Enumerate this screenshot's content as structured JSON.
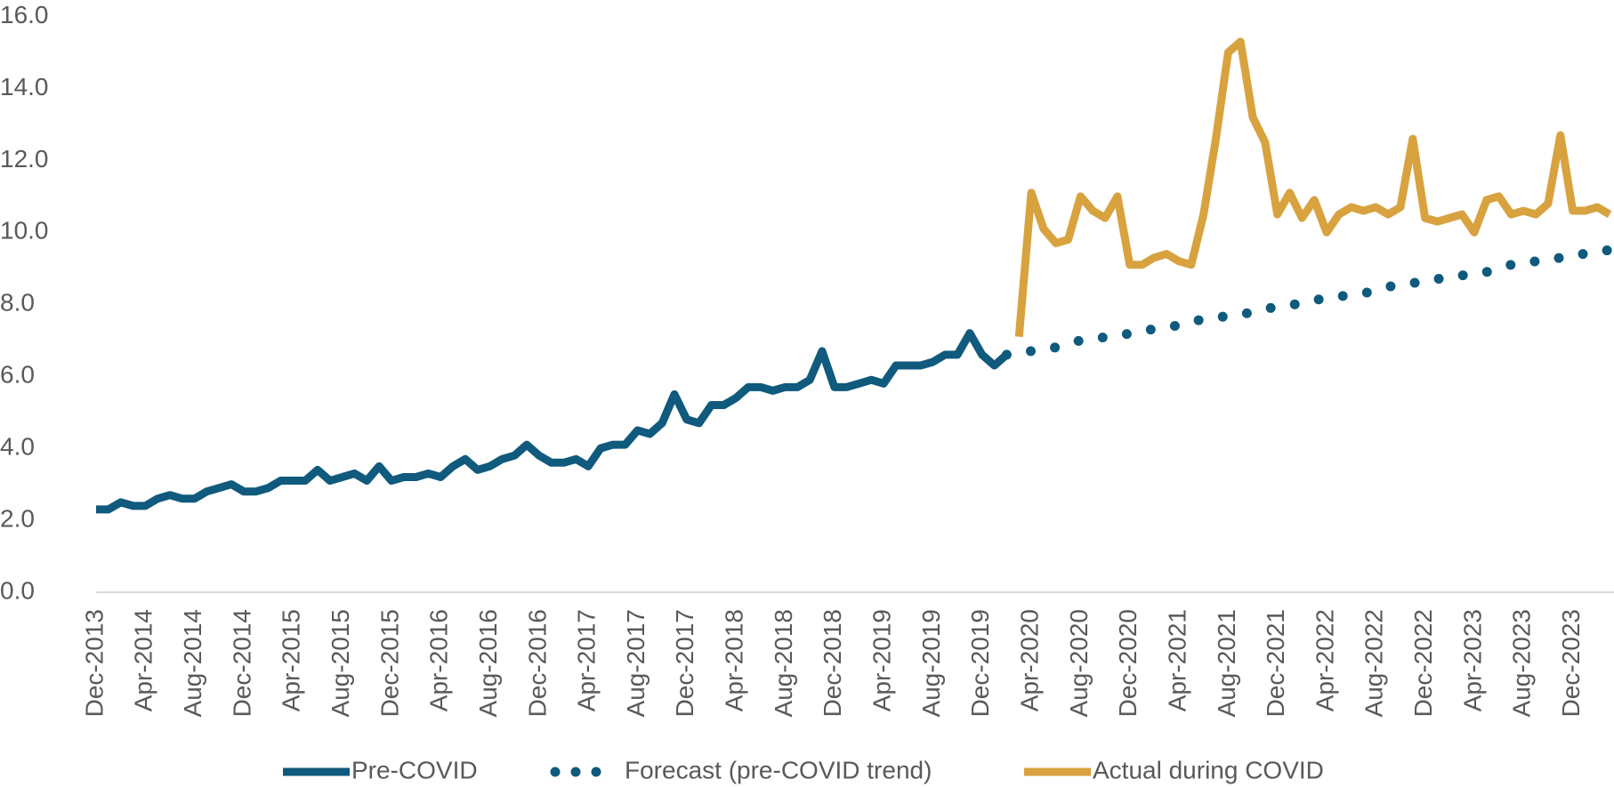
{
  "chart_data": {
    "type": "line",
    "categories": [
      "Dec-2013",
      null,
      null,
      null,
      "Apr-2014",
      null,
      null,
      null,
      "Aug-2014",
      null,
      null,
      null,
      "Dec-2014",
      null,
      null,
      null,
      "Apr-2015",
      null,
      null,
      null,
      "Aug-2015",
      null,
      null,
      null,
      "Dec-2015",
      null,
      null,
      null,
      "Apr-2016",
      null,
      null,
      null,
      "Aug-2016",
      null,
      null,
      null,
      "Dec-2016",
      null,
      null,
      null,
      "Apr-2017",
      null,
      null,
      null,
      "Aug-2017",
      null,
      null,
      null,
      "Dec-2017",
      null,
      null,
      null,
      "Apr-2018",
      null,
      null,
      null,
      "Aug-2018",
      null,
      null,
      null,
      "Dec-2018",
      null,
      null,
      null,
      "Apr-2019",
      null,
      null,
      null,
      "Aug-2019",
      null,
      null,
      null,
      "Dec-2019",
      null,
      null,
      null,
      "Apr-2020",
      null,
      null,
      null,
      "Aug-2020",
      null,
      null,
      null,
      "Dec-2020",
      null,
      null,
      null,
      "Apr-2021",
      null,
      null,
      null,
      "Aug-2021",
      null,
      null,
      null,
      "Dec-2021",
      null,
      null,
      null,
      "Apr-2022",
      null,
      null,
      null,
      "Aug-2022",
      null,
      null,
      null,
      "Dec-2022",
      null,
      null,
      null,
      "Apr-2023",
      null,
      null,
      null,
      "Aug-2023",
      null,
      null,
      null,
      "Dec-2023",
      null,
      null,
      null
    ],
    "series": [
      {
        "name": "Pre-COVID",
        "color": "#0f5a7d",
        "style": "solid",
        "values": [
          2.3,
          2.3,
          2.5,
          2.4,
          2.4,
          2.6,
          2.7,
          2.6,
          2.6,
          2.8,
          2.9,
          3.0,
          2.8,
          2.8,
          2.9,
          3.1,
          3.1,
          3.1,
          3.4,
          3.1,
          3.2,
          3.3,
          3.1,
          3.5,
          3.1,
          3.2,
          3.2,
          3.3,
          3.2,
          3.5,
          3.7,
          3.4,
          3.5,
          3.7,
          3.8,
          4.1,
          3.8,
          3.6,
          3.6,
          3.7,
          3.5,
          4.0,
          4.1,
          4.1,
          4.5,
          4.4,
          4.7,
          5.5,
          4.8,
          4.7,
          5.2,
          5.2,
          5.4,
          5.7,
          5.7,
          5.6,
          5.7,
          5.7,
          5.9,
          6.7,
          5.7,
          5.7,
          5.8,
          5.9,
          5.8,
          6.3,
          6.3,
          6.3,
          6.4,
          6.6,
          6.6,
          7.2,
          6.6,
          6.3,
          6.6,
          null,
          null,
          null,
          null,
          null,
          null,
          null,
          null,
          null,
          null,
          null,
          null,
          null,
          null,
          null,
          null,
          null,
          null,
          null,
          null,
          null,
          null,
          null,
          null,
          null,
          null,
          null,
          null,
          null,
          null,
          null,
          null,
          null,
          null,
          null,
          null,
          null,
          null,
          null,
          null,
          null,
          null,
          null,
          null,
          null,
          null,
          null,
          null,
          null
        ]
      },
      {
        "name": "Forecast (pre-COVID trend)",
        "color": "#0f5a7d",
        "style": "dotted",
        "values": [
          null,
          null,
          null,
          null,
          null,
          null,
          null,
          null,
          null,
          null,
          null,
          null,
          null,
          null,
          null,
          null,
          null,
          null,
          null,
          null,
          null,
          null,
          null,
          null,
          null,
          null,
          null,
          null,
          null,
          null,
          null,
          null,
          null,
          null,
          null,
          null,
          null,
          null,
          null,
          null,
          null,
          null,
          null,
          null,
          null,
          null,
          null,
          null,
          null,
          null,
          null,
          null,
          null,
          null,
          null,
          null,
          null,
          null,
          null,
          null,
          null,
          null,
          null,
          null,
          null,
          null,
          null,
          null,
          null,
          null,
          null,
          null,
          null,
          null,
          6.6,
          6.7,
          6.7,
          6.8,
          6.8,
          6.9,
          7.0,
          7.0,
          7.1,
          7.1,
          7.2,
          7.3,
          7.3,
          7.4,
          7.4,
          7.5,
          7.6,
          7.6,
          7.7,
          7.7,
          7.8,
          7.9,
          7.9,
          8.0,
          8.0,
          8.1,
          8.2,
          8.2,
          8.3,
          8.3,
          8.4,
          8.5,
          8.5,
          8.6,
          8.6,
          8.7,
          8.8,
          8.8,
          8.9,
          8.9,
          9.0,
          9.1,
          9.1,
          9.2,
          9.2,
          9.3,
          9.4,
          9.4,
          9.5,
          9.5
        ]
      },
      {
        "name": "Actual during COVID",
        "color": "#d8a23f",
        "style": "solid",
        "values": [
          null,
          null,
          null,
          null,
          null,
          null,
          null,
          null,
          null,
          null,
          null,
          null,
          null,
          null,
          null,
          null,
          null,
          null,
          null,
          null,
          null,
          null,
          null,
          null,
          null,
          null,
          null,
          null,
          null,
          null,
          null,
          null,
          null,
          null,
          null,
          null,
          null,
          null,
          null,
          null,
          null,
          null,
          null,
          null,
          null,
          null,
          null,
          null,
          null,
          null,
          null,
          null,
          null,
          null,
          null,
          null,
          null,
          null,
          null,
          null,
          null,
          null,
          null,
          null,
          null,
          null,
          null,
          null,
          null,
          null,
          null,
          null,
          null,
          null,
          null,
          7.1,
          11.1,
          10.1,
          9.7,
          9.8,
          11.0,
          10.6,
          10.4,
          11.0,
          9.1,
          9.1,
          9.3,
          9.4,
          9.2,
          9.1,
          10.5,
          12.6,
          15.0,
          15.3,
          13.2,
          12.5,
          10.5,
          11.1,
          10.4,
          10.9,
          10.0,
          10.5,
          10.7,
          10.6,
          10.7,
          10.5,
          10.7,
          12.6,
          10.4,
          10.3,
          10.4,
          10.5,
          10.0,
          10.9,
          11.0,
          10.5,
          10.6,
          10.5,
          10.8,
          12.7,
          10.6,
          10.6,
          10.7,
          10.5
        ]
      }
    ],
    "ylim": [
      0,
      16
    ],
    "yticks": [
      {
        "value": 0,
        "label": "0.0"
      },
      {
        "value": 2,
        "label": "2.0"
      },
      {
        "value": 4,
        "label": "4.0"
      },
      {
        "value": 6,
        "label": "6.0"
      },
      {
        "value": 8,
        "label": "8.0"
      },
      {
        "value": 10,
        "label": "10.0"
      },
      {
        "value": 12,
        "label": "12.0"
      },
      {
        "value": 14,
        "label": "14.0"
      },
      {
        "value": 16,
        "label": "16.0"
      }
    ],
    "legend": "bottom"
  }
}
